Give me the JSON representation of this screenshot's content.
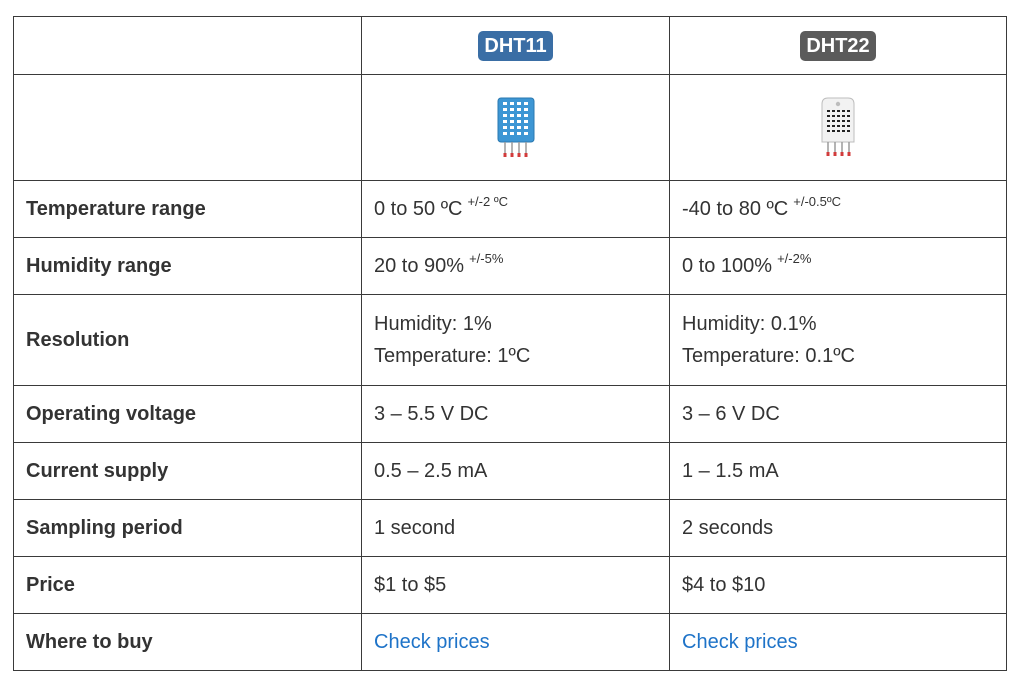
{
  "header": {
    "dht11_label": "DHT11",
    "dht22_label": "DHT22",
    "dht11_color": "#3a6ea5",
    "dht22_color": "#5b5b5b"
  },
  "images": {
    "dht11_icon": "dht11-sensor-icon",
    "dht22_icon": "dht22-sensor-icon"
  },
  "rows": {
    "temperature": {
      "label": "Temperature range",
      "dht11": "0 to 50 ºC",
      "dht11_sup": "+/-2 ºC",
      "dht22": "-40 to 80 ºC",
      "dht22_sup": "+/-0.5ºC"
    },
    "humidity": {
      "label": "Humidity range",
      "dht11": "20 to 90%",
      "dht11_sup": "+/-5%",
      "dht22": "0 to 100%",
      "dht22_sup": "+/-2%"
    },
    "resolution": {
      "label": "Resolution",
      "dht11_line1": "Humidity: 1%",
      "dht11_line2": "Temperature: 1ºC",
      "dht22_line1": "Humidity: 0.1%",
      "dht22_line2": "Temperature: 0.1ºC"
    },
    "voltage": {
      "label": "Operating voltage",
      "dht11": "3 – 5.5 V DC",
      "dht22": "3 – 6 V DC"
    },
    "current": {
      "label": "Current supply",
      "dht11": "0.5 – 2.5 mA",
      "dht22": "1 – 1.5 mA"
    },
    "sampling": {
      "label": "Sampling period",
      "dht11": "1 second",
      "dht22": "2 seconds"
    },
    "price": {
      "label": "Price",
      "dht11": "$1 to $5",
      "dht22": "$4 to $10"
    },
    "buy": {
      "label": "Where to buy",
      "dht11": "Check prices",
      "dht22": "Check prices",
      "link_color": "#1e73c8"
    }
  }
}
